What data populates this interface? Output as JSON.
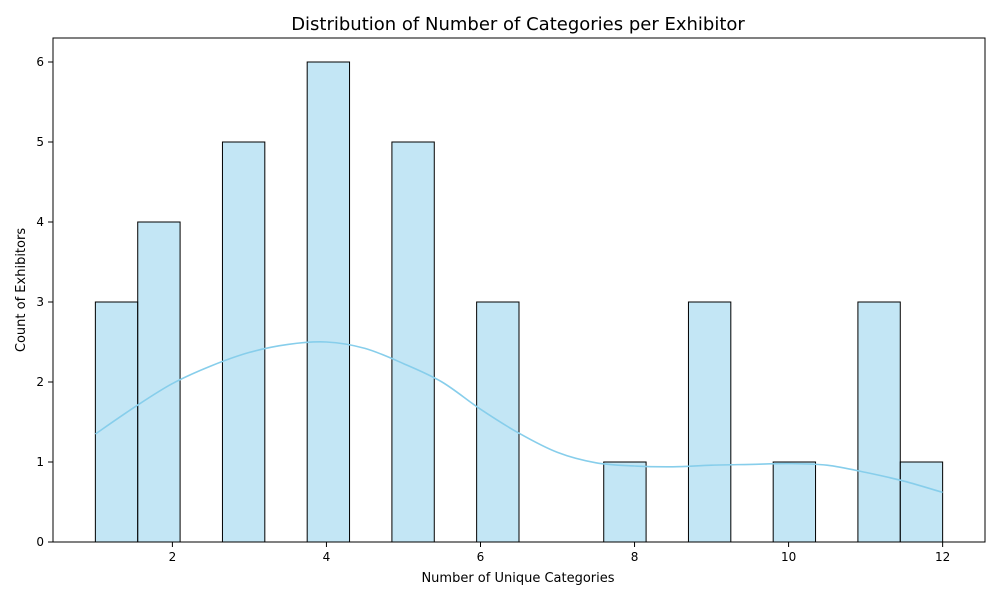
{
  "chart_data": {
    "type": "bar",
    "subtype": "histogram-with-kde",
    "title": "Distribution of Number of Categories per Exhibitor",
    "xlabel": "Number of Unique Categories",
    "ylabel": "Count of Exhibitors",
    "xlim": [
      0.45,
      12.55
    ],
    "ylim": [
      0,
      6.3
    ],
    "xticks": [
      2,
      4,
      6,
      8,
      10,
      12
    ],
    "yticks": [
      0,
      1,
      2,
      3,
      4,
      5,
      6
    ],
    "bin_edges": [
      1,
      1.55,
      2.1,
      2.65,
      3.2,
      3.75,
      4.3,
      4.85,
      5.4,
      5.95,
      6.5,
      7.05,
      7.6,
      8.15,
      8.7,
      9.25,
      9.8,
      10.35,
      10.9,
      11.45,
      12
    ],
    "counts": [
      3,
      4,
      0,
      5,
      0,
      6,
      0,
      5,
      0,
      3,
      0,
      0,
      1,
      0,
      3,
      0,
      1,
      0,
      3,
      1
    ],
    "bar_color": "#87ceeb",
    "bar_opacity": 0.5,
    "bar_edge_color": "#000000",
    "kde": {
      "color": "#87ceeb",
      "x": [
        1,
        1.5,
        2,
        2.5,
        3,
        3.5,
        4,
        4.5,
        5,
        5.5,
        6,
        6.5,
        7,
        7.5,
        8,
        8.5,
        9,
        9.5,
        10,
        10.5,
        11,
        11.5,
        12
      ],
      "y": [
        1.35,
        1.68,
        1.98,
        2.2,
        2.37,
        2.47,
        2.5,
        2.42,
        2.23,
        2.0,
        1.66,
        1.36,
        1.12,
        0.99,
        0.95,
        0.94,
        0.96,
        0.97,
        0.98,
        0.96,
        0.87,
        0.76,
        0.62
      ]
    }
  }
}
